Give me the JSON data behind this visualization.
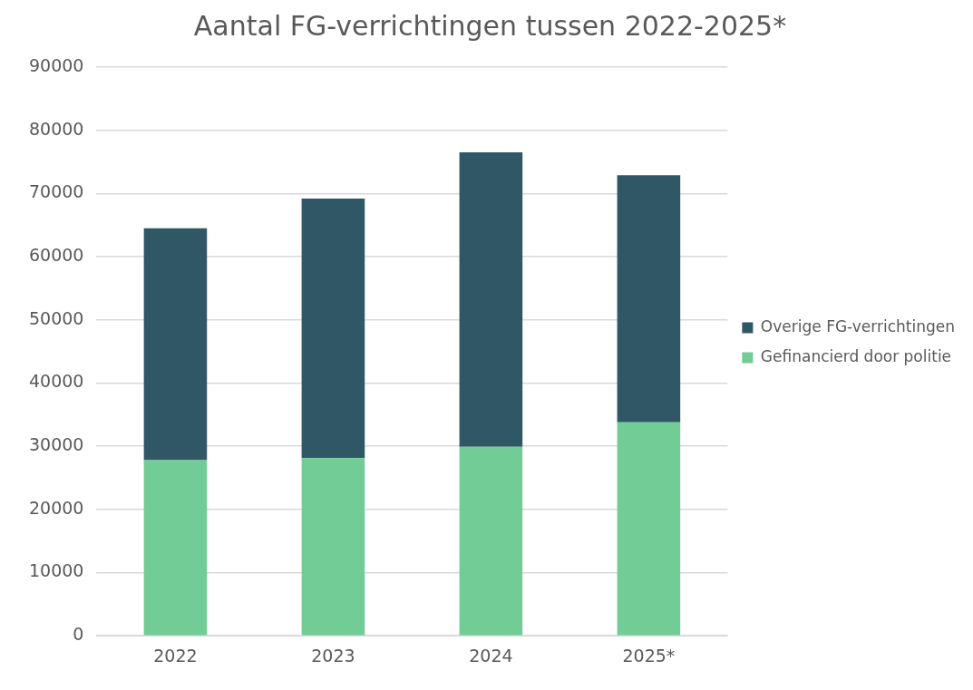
{
  "chart_data": {
    "type": "bar",
    "title": "Aantal FG-verrichtingen tussen 2022-2025*",
    "categories": [
      "2022",
      "2023",
      "2024",
      "2025*"
    ],
    "stacked": true,
    "series": [
      {
        "name": "Gefinancierd door politie",
        "color": "#72cc96",
        "values": [
          27800,
          28100,
          29900,
          33800
        ]
      },
      {
        "name": "Overige FG-verrichtingen",
        "color": "#2f5766",
        "values": [
          36700,
          41100,
          46600,
          39100
        ]
      }
    ],
    "ylim": [
      0,
      90000
    ],
    "yticks": [
      0,
      10000,
      20000,
      30000,
      40000,
      50000,
      60000,
      70000,
      80000,
      90000
    ],
    "grid": "y",
    "legend": "right"
  }
}
